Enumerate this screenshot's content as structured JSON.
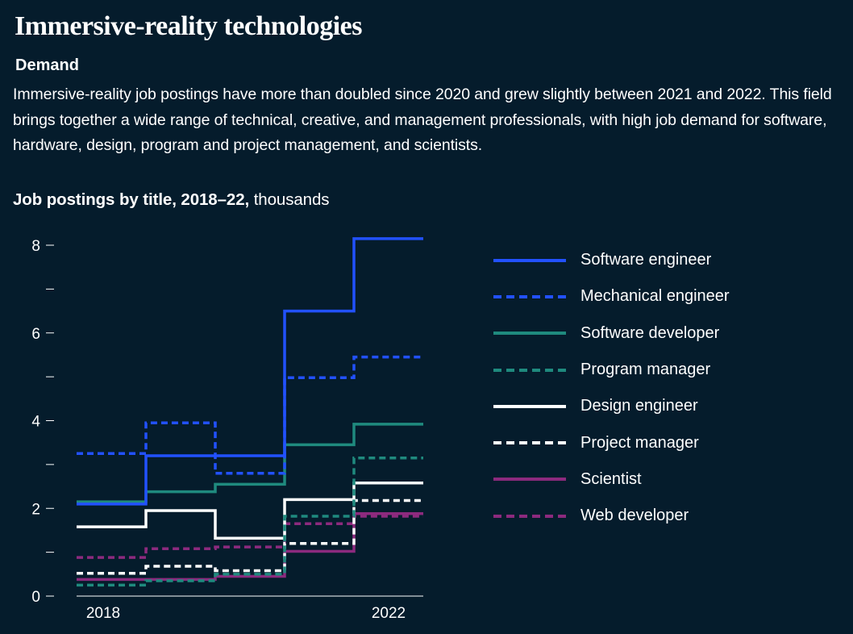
{
  "header": {
    "title": "Immersive-reality technologies",
    "subtitle": "Demand",
    "description": "Immersive-reality job postings have more than doubled since 2020 and grew slightly between 2021 and 2022. This field brings together a wide range of technical, creative, and management professionals, with high job demand for software, hardware, design, program and project management, and scientists."
  },
  "chart_data": {
    "type": "line",
    "title_bold": "Job postings by title, 2018–22,",
    "title_unit": " thousands",
    "x": [
      2018,
      2019,
      2020,
      2021,
      2022
    ],
    "x_tick_labels": [
      "2018",
      "2022"
    ],
    "ylim": [
      0,
      8
    ],
    "y_ticks": [
      0,
      1,
      2,
      3,
      4,
      5,
      6,
      7,
      8
    ],
    "y_tick_labels": [
      "0",
      "",
      "2",
      "",
      "4",
      "",
      "6",
      "",
      "8"
    ],
    "step": true,
    "grid": false,
    "legend_position": "right",
    "series": [
      {
        "name": "Software engineer",
        "color": "#2251ff",
        "dash": false,
        "values": [
          2.1,
          3.2,
          3.2,
          6.5,
          8.15
        ]
      },
      {
        "name": "Mechanical engineer",
        "color": "#2251ff",
        "dash": true,
        "values": [
          3.25,
          3.95,
          2.8,
          4.98,
          5.45
        ]
      },
      {
        "name": "Software developer",
        "color": "#1f8a7e",
        "dash": false,
        "values": [
          2.15,
          2.38,
          2.55,
          3.45,
          3.92
        ]
      },
      {
        "name": "Program manager",
        "color": "#1f8a7e",
        "dash": true,
        "values": [
          0.25,
          0.35,
          0.5,
          1.82,
          3.15
        ]
      },
      {
        "name": "Design engineer",
        "color": "#ffffff",
        "dash": false,
        "values": [
          1.58,
          1.95,
          1.32,
          2.2,
          2.58
        ]
      },
      {
        "name": "Project manager",
        "color": "#ffffff",
        "dash": true,
        "values": [
          0.52,
          0.68,
          0.58,
          1.2,
          2.18
        ]
      },
      {
        "name": "Scientist",
        "color": "#8c2a7e",
        "dash": false,
        "values": [
          0.38,
          0.38,
          0.45,
          1.02,
          1.88
        ]
      },
      {
        "name": "Web developer",
        "color": "#8c2a7e",
        "dash": true,
        "values": [
          0.88,
          1.08,
          1.12,
          1.65,
          1.82
        ]
      }
    ]
  }
}
